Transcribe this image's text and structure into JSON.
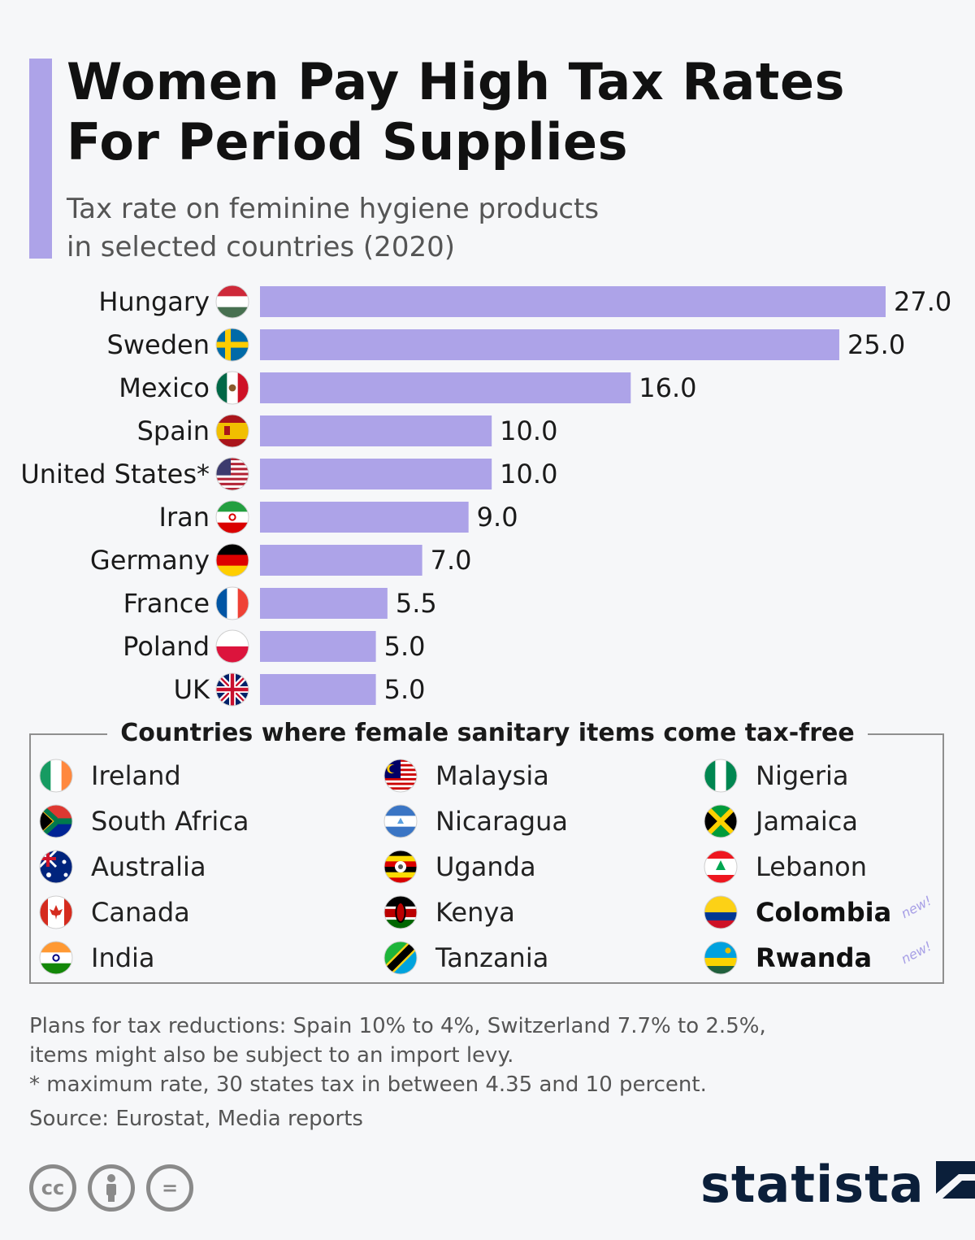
{
  "header": {
    "title": "Women Pay High Tax Rates\nFor Period Supplies",
    "subtitle": "Tax rate on feminine hygiene products\nin selected countries (2020)"
  },
  "colors": {
    "bar": "#ada3e8",
    "accent": "#ada3e8",
    "brand": "#0b1f3a"
  },
  "chart_data": {
    "type": "bar",
    "orientation": "horizontal",
    "title": "Women Pay High Tax Rates For Period Supplies",
    "subtitle": "Tax rate on feminine hygiene products in selected countries (2020)",
    "categories": [
      "Hungary",
      "Sweden",
      "Mexico",
      "Spain",
      "United States*",
      "Iran",
      "Germany",
      "France",
      "Poland",
      "UK"
    ],
    "flags": [
      "hungary-flag-icon",
      "sweden-flag-icon",
      "mexico-flag-icon",
      "spain-flag-icon",
      "usa-flag-icon",
      "iran-flag-icon",
      "germany-flag-icon",
      "france-flag-icon",
      "poland-flag-icon",
      "uk-flag-icon"
    ],
    "values": [
      27.0,
      25.0,
      16.0,
      10.0,
      10.0,
      9.0,
      7.0,
      5.5,
      5.0,
      5.0
    ],
    "value_labels": [
      "27.0",
      "25.0",
      "16.0",
      "10.0",
      "10.0",
      "9.0",
      "7.0",
      "5.5",
      "5.0",
      "5.0"
    ],
    "xlim": [
      0,
      27
    ],
    "grid": false,
    "legend": "none"
  },
  "tax_free": {
    "heading": "Countries where female sanitary items come tax-free",
    "new_label": "new!",
    "countries": [
      {
        "name": "Ireland",
        "flag": "ireland-flag-icon",
        "new": false
      },
      {
        "name": "South Africa",
        "flag": "south-africa-flag-icon",
        "new": false
      },
      {
        "name": "Australia",
        "flag": "australia-flag-icon",
        "new": false
      },
      {
        "name": "Canada",
        "flag": "canada-flag-icon",
        "new": false
      },
      {
        "name": "India",
        "flag": "india-flag-icon",
        "new": false
      },
      {
        "name": "Malaysia",
        "flag": "malaysia-flag-icon",
        "new": false
      },
      {
        "name": "Nicaragua",
        "flag": "nicaragua-flag-icon",
        "new": false
      },
      {
        "name": "Uganda",
        "flag": "uganda-flag-icon",
        "new": false
      },
      {
        "name": "Kenya",
        "flag": "kenya-flag-icon",
        "new": false
      },
      {
        "name": "Tanzania",
        "flag": "tanzania-flag-icon",
        "new": false
      },
      {
        "name": "Nigeria",
        "flag": "nigeria-flag-icon",
        "new": false
      },
      {
        "name": "Jamaica",
        "flag": "jamaica-flag-icon",
        "new": false
      },
      {
        "name": "Lebanon",
        "flag": "lebanon-flag-icon",
        "new": false
      },
      {
        "name": "Colombia",
        "flag": "colombia-flag-icon",
        "new": true
      },
      {
        "name": "Rwanda",
        "flag": "rwanda-flag-icon",
        "new": true
      }
    ]
  },
  "notes": {
    "line1": "Plans for tax reductions: Spain 10% to 4%, Switzerland 7.7% to 2.5%,",
    "line2": "items might also be subject to an import levy.",
    "line3": "* maximum rate, 30 states tax in between 4.35 and 10 percent."
  },
  "source": "Source: Eurostat, Media reports",
  "footer": {
    "license_icons": [
      "cc-icon",
      "attribution-icon",
      "no-derivatives-icon"
    ],
    "cc_text": "cc",
    "nd_text": "=",
    "brand": "statista"
  }
}
